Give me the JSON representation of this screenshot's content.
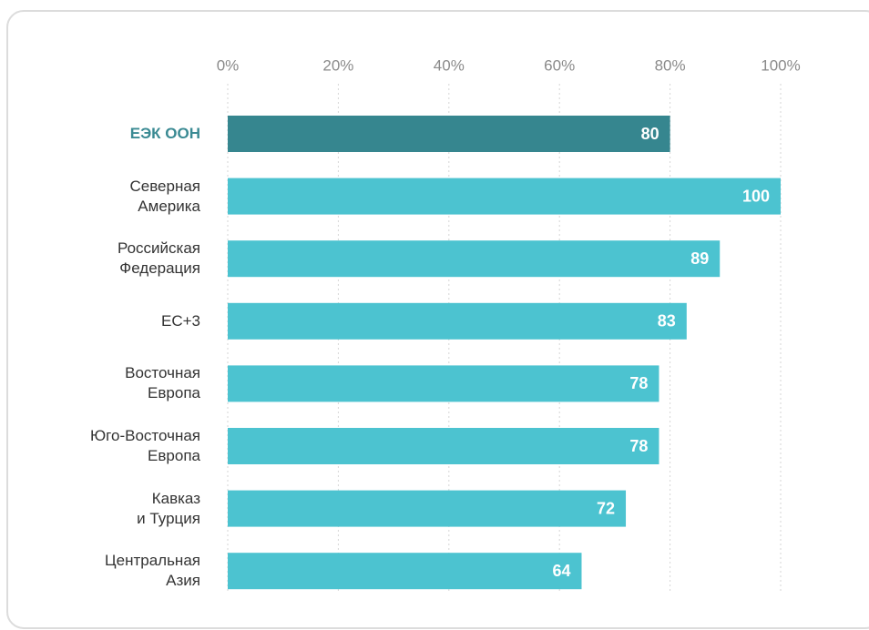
{
  "chart_data": {
    "type": "hbar",
    "categories": [
      "ЕЭК ООН",
      "Северная\nАмерика",
      "Российская\nФедерация",
      "ЕС+3",
      "Восточная\nЕвропа",
      "Юго-Восточная\nЕвропа",
      "Кавказ\nи Турция",
      "Центральная\nАзия"
    ],
    "values": [
      80,
      100,
      89,
      83,
      78,
      78,
      72,
      64
    ],
    "colors": [
      "#36868f",
      "#4cc3d0",
      "#4cc3d0",
      "#4cc3d0",
      "#4cc3d0",
      "#4cc3d0",
      "#4cc3d0",
      "#4cc3d0"
    ],
    "highlight_label_color": "#3a8a93",
    "xlim": [
      0,
      100
    ],
    "xticks": [
      {
        "value": 0,
        "label": "0%"
      },
      {
        "value": 20,
        "label": "20%"
      },
      {
        "value": 40,
        "label": "40%"
      },
      {
        "value": 60,
        "label": "60%"
      },
      {
        "value": 80,
        "label": "80%"
      },
      {
        "value": 100,
        "label": "100%"
      }
    ],
    "grid": true
  }
}
